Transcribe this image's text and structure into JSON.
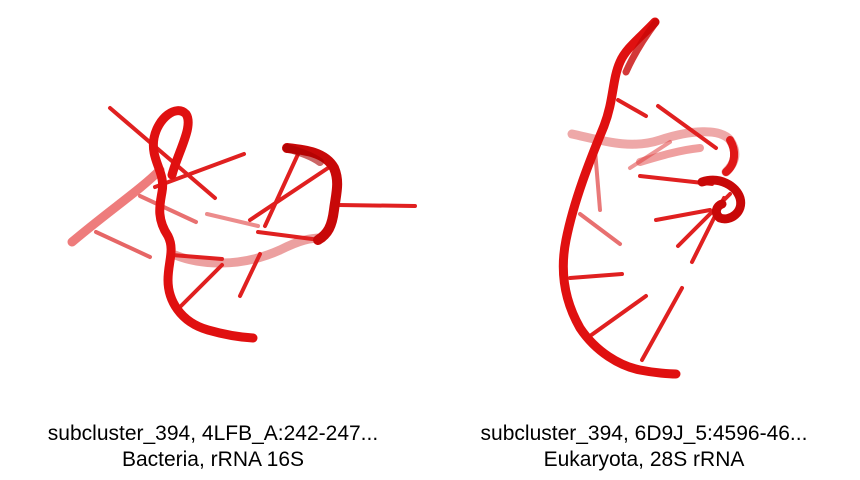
{
  "colors": {
    "backbone": "#e01010",
    "backbone_dark": "#b00000",
    "base": "#e02020",
    "background": "#ffffff",
    "caption": "#000000"
  },
  "panels": [
    {
      "caption_line1": "subcluster_394, 4LFB_A:242-247...",
      "caption_line2": "Bacteria, rRNA 16S"
    },
    {
      "caption_line1": "subcluster_394, 6D9J_5:4596-46...",
      "caption_line2": "Eukaryota, 28S rRNA"
    }
  ]
}
